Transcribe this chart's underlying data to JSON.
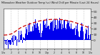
{
  "title": "Milwaukee Weather Outdoor Temp (vs) Wind Chill per Minute (Last 24 Hours)",
  "bg_color": "#d4d4d4",
  "plot_bg_color": "#ffffff",
  "red_line_color": "#cc0000",
  "blue_bar_color": "#0000ee",
  "grid_color": "#999999",
  "y_min": -15,
  "y_max": 55,
  "y_ticks": [
    50,
    40,
    30,
    20,
    10,
    0
  ],
  "n_points": 1440,
  "seed": 7
}
